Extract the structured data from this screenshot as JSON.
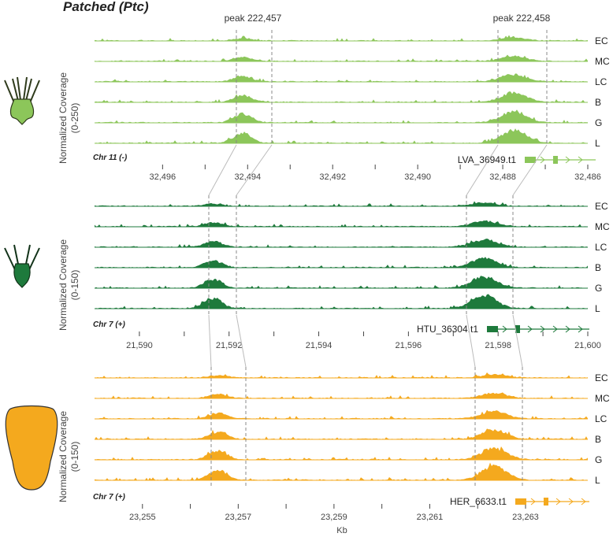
{
  "title": "Patched (Ptc)",
  "xlabel": "Kb",
  "colors": {
    "panel1": "#8cc65a",
    "panel2": "#1e7a3c",
    "panel3": "#f4a91e",
    "guide": "#888888"
  },
  "peaks": [
    {
      "label": "peak 222,457"
    },
    {
      "label": "peak 222,458"
    }
  ],
  "chart_data": [
    {
      "type": "area",
      "ylabel": "Normalized Coverage\n(0-250)",
      "ylim": [
        0,
        250
      ],
      "chromosome": "Chr 11 (-)",
      "xlim": [
        32497.6,
        32486
      ],
      "xticks": [
        32496,
        32494,
        32492,
        32490,
        32488,
        32486
      ],
      "xtick_labels": [
        "32,496",
        "32,494",
        "32,492",
        "32,490",
        "32,488",
        "32,486"
      ],
      "tracks": [
        "EC",
        "MC",
        "LC",
        "B",
        "G",
        "L"
      ],
      "gene": {
        "name": "LVA_36949.t1"
      }
    },
    {
      "type": "area",
      "ylabel": "Normalized Coverage\n(0-150)",
      "ylim": [
        0,
        150
      ],
      "chromosome": "Chr 7 (+)",
      "xlim": [
        21589,
        21600
      ],
      "xticks": [
        21590,
        21592,
        21594,
        21596,
        21598,
        21600
      ],
      "xtick_labels": [
        "21,590",
        "21,592",
        "21,594",
        "21,596",
        "21,598",
        "21,600"
      ],
      "tracks": [
        "EC",
        "MC",
        "LC",
        "B",
        "G",
        "L"
      ],
      "gene": {
        "name": "HTU_36304.t1"
      }
    },
    {
      "type": "area",
      "ylabel": "Normalized Coverage\n(0-150)",
      "ylim": [
        0,
        150
      ],
      "chromosome": "Chr 7 (+)",
      "xlim": [
        23254,
        23264.3
      ],
      "xticks": [
        23255,
        23257,
        23259,
        23261,
        23263
      ],
      "xtick_labels": [
        "23,255",
        "23,257",
        "23,259",
        "23,261",
        "23,263"
      ],
      "tracks": [
        "EC",
        "MC",
        "LC",
        "B",
        "G",
        "L"
      ],
      "gene": {
        "name": "HER_6633.t1"
      }
    }
  ]
}
